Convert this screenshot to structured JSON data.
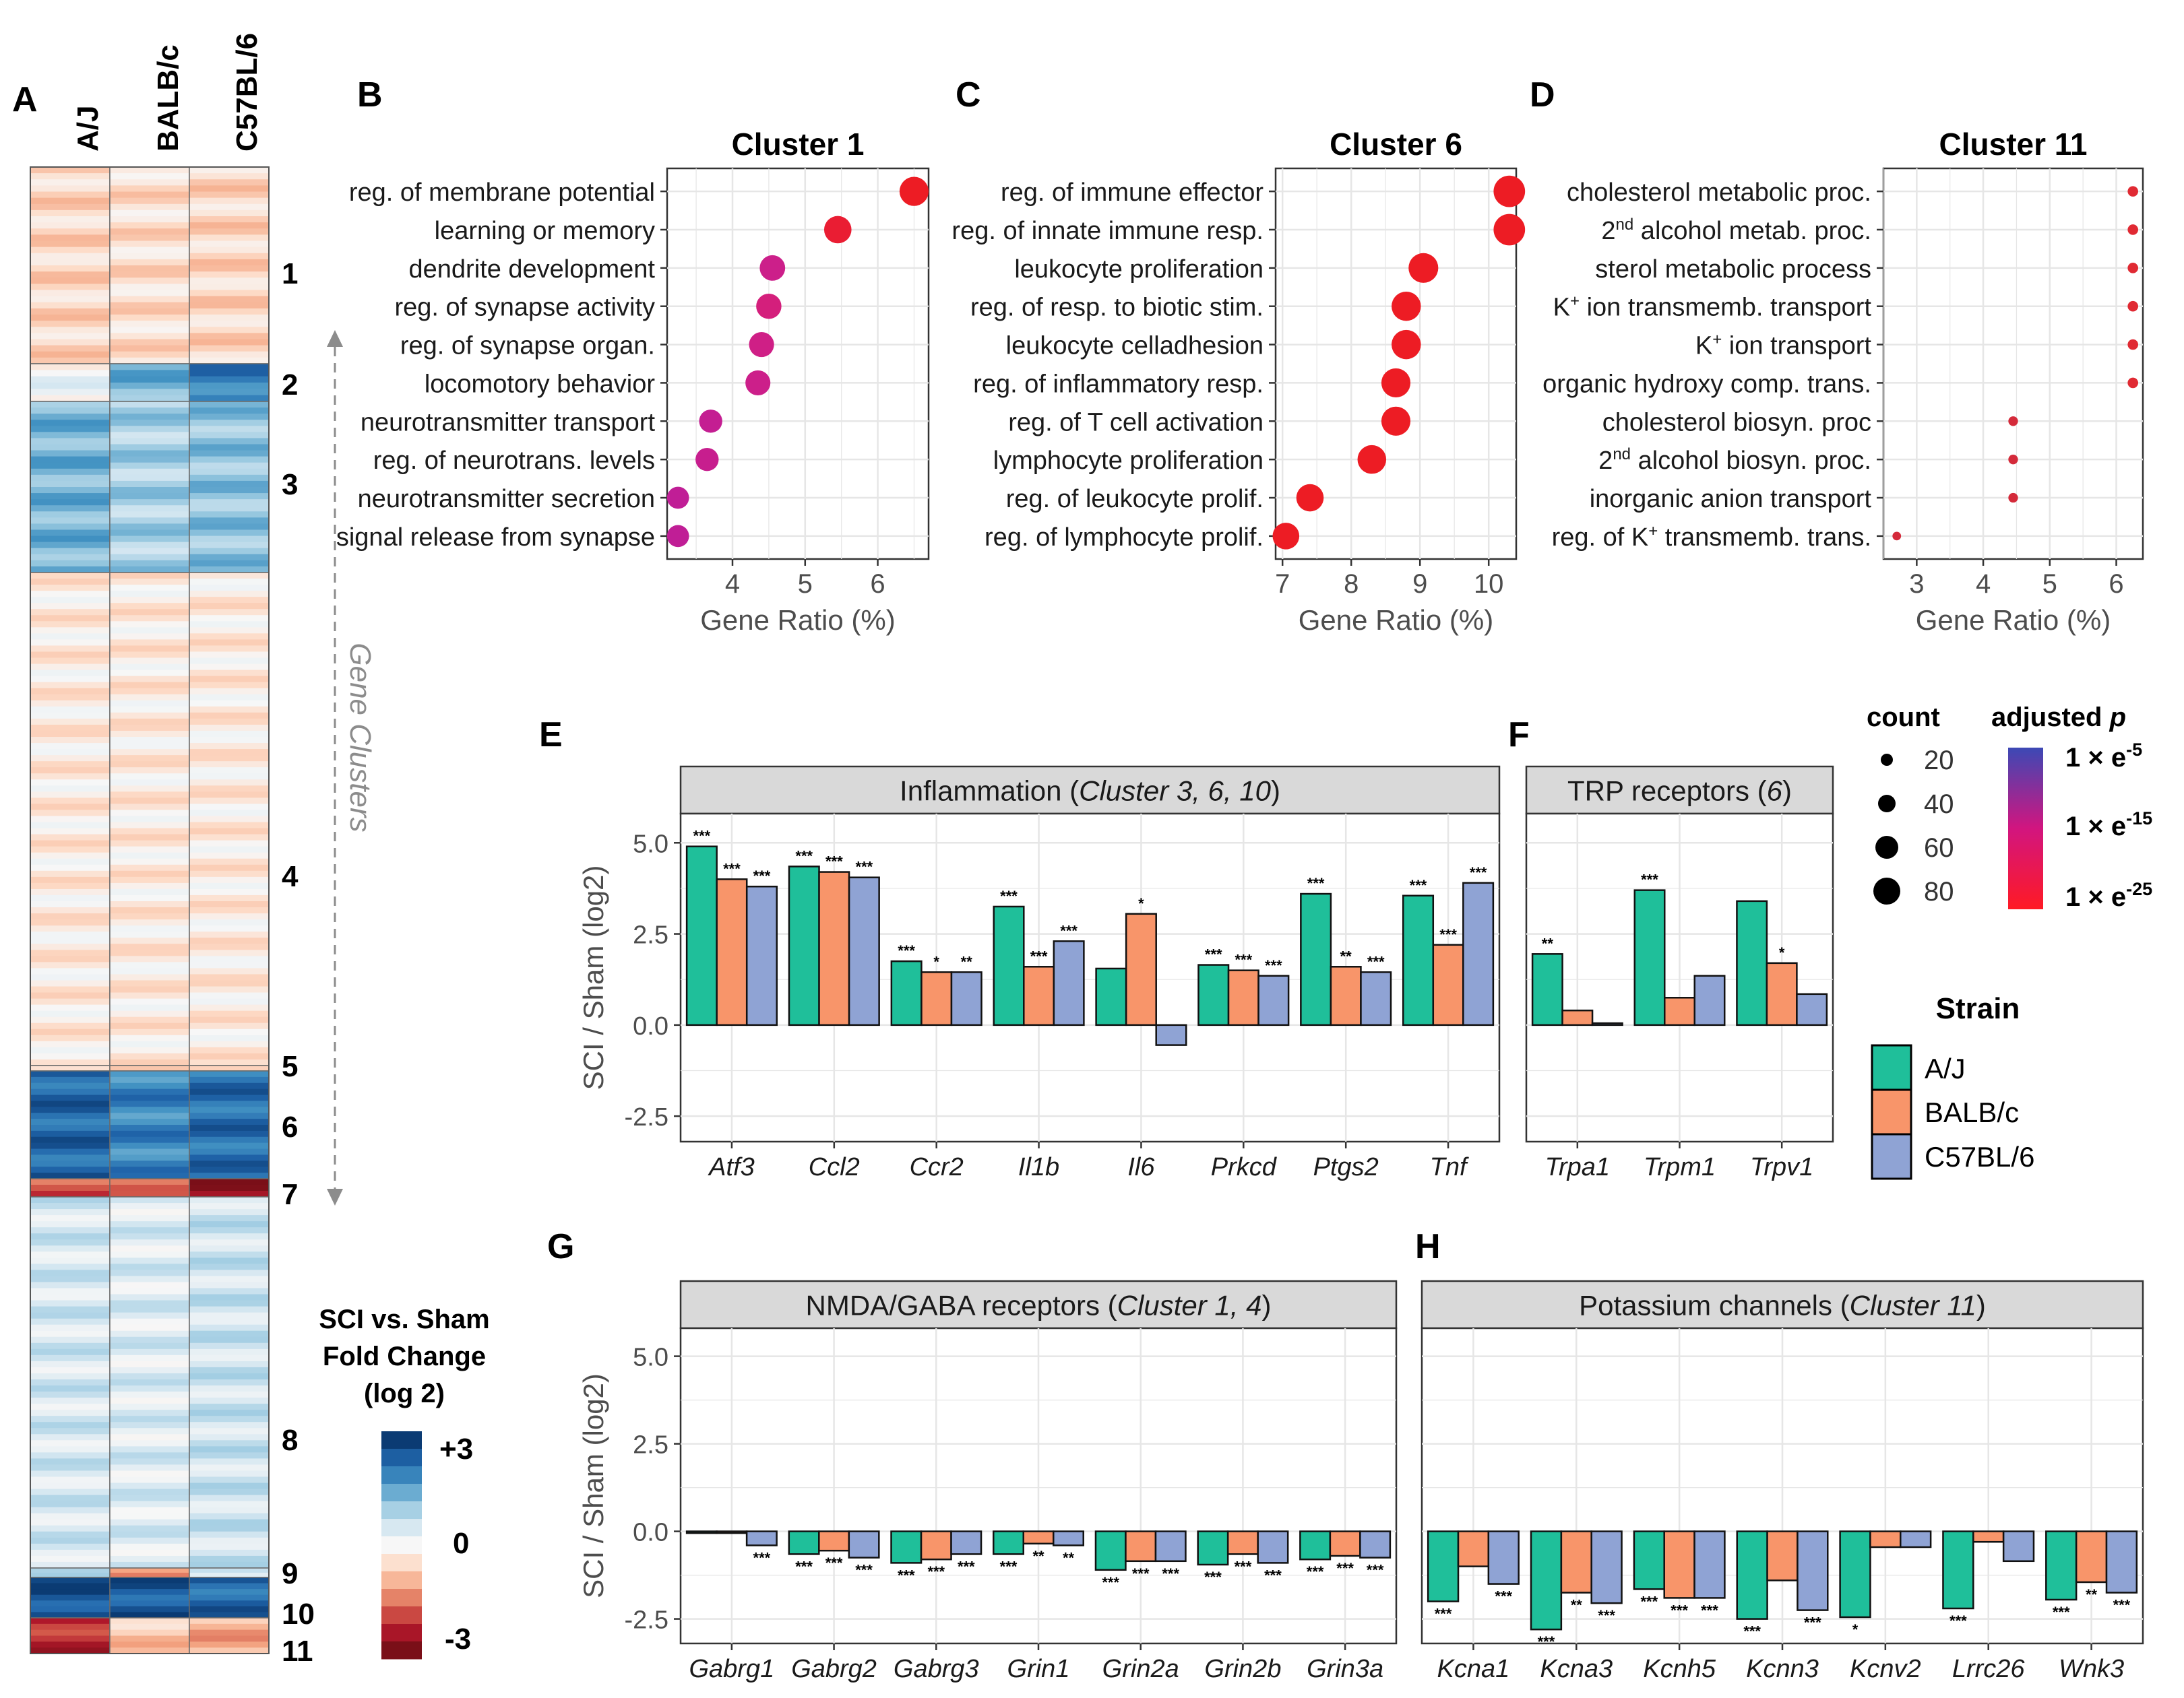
{
  "colors": {
    "aj": "#1fbf9a",
    "balb": "#f8956a",
    "c57": "#8fa3d4",
    "panel_bg": "#ffffff",
    "strip_bg": "#d9d9d9",
    "grid": "#e6e6e6",
    "dot_high": "#ed1c24",
    "dot_low": "#cc1f8a",
    "pos_dark": "#0b3b73",
    "neg_dark": "#7a0f18"
  },
  "chart_data": [
    {
      "panel": "A",
      "type": "heatmap",
      "strains": [
        "A/J",
        "BALB/c",
        "C57BL/6"
      ],
      "clusters": [
        {
          "id": "1",
          "label": "1",
          "aj": -0.6,
          "balb": -0.5,
          "c57": -0.6
        },
        {
          "id": "2",
          "label": "2",
          "aj": 0.1,
          "balb": 1.4,
          "c57": 2.1
        },
        {
          "id": "3",
          "label": "3",
          "aj": 1.4,
          "balb": 1.0,
          "c57": 1.2
        },
        {
          "id": "4",
          "label": "4",
          "aj": -0.3,
          "balb": -0.3,
          "c57": -0.3
        },
        {
          "id": "5",
          "label": "5",
          "aj": -0.4,
          "balb": -0.4,
          "c57": -0.4
        },
        {
          "id": "6",
          "label": "6",
          "aj": 2.4,
          "balb": 2.0,
          "c57": 2.3
        },
        {
          "id": "7",
          "label": "7",
          "aj": -1.9,
          "balb": -1.5,
          "c57": -2.6
        },
        {
          "id": "8",
          "label": "8",
          "aj": 0.5,
          "balb": 0.4,
          "c57": 0.6
        },
        {
          "id": "9",
          "label": "9",
          "aj": 0.6,
          "balb": -1.6,
          "c57": 0.7
        },
        {
          "id": "10",
          "label": "10",
          "aj": 2.7,
          "balb": 2.6,
          "c57": 2.4
        },
        {
          "id": "11",
          "label": "11",
          "aj": -2.3,
          "balb": -0.8,
          "c57": -1.1
        }
      ],
      "axis_label": "Gene Clusters",
      "legend": {
        "title_lines": [
          "SCI vs. Sham",
          "Fold Change",
          "(log 2)"
        ],
        "ticks": [
          "+3",
          "0",
          "-3"
        ],
        "range": [
          -3,
          3
        ]
      }
    },
    {
      "panel": "B",
      "type": "scatter",
      "title": "Cluster 1",
      "xlabel": "Gene Ratio (%)",
      "xlim": [
        3.1,
        6.7
      ],
      "xticks": [
        4,
        5,
        6
      ],
      "terms": [
        {
          "label": "reg. of membrane potential",
          "ratio": 6.5,
          "count": 60,
          "color": "#ed1c24"
        },
        {
          "label": "learning or memory",
          "ratio": 5.45,
          "count": 52,
          "color": "#ea1d33"
        },
        {
          "label": "dendrite development",
          "ratio": 4.55,
          "count": 44,
          "color": "#cc1f8a"
        },
        {
          "label": "reg. of synapse activity",
          "ratio": 4.5,
          "count": 43,
          "color": "#d41f7c"
        },
        {
          "label": "reg. of synapse organ.",
          "ratio": 4.4,
          "count": 42,
          "color": "#cf1f86"
        },
        {
          "label": "locomotory behavior",
          "ratio": 4.35,
          "count": 42,
          "color": "#cc1f8a"
        },
        {
          "label": "neurotransmitter transport",
          "ratio": 3.7,
          "count": 35,
          "color": "#c41e92"
        },
        {
          "label": "reg. of neurotrans. levels",
          "ratio": 3.65,
          "count": 35,
          "color": "#c71e8e"
        },
        {
          "label": "neurotransmitter secretion",
          "ratio": 3.25,
          "count": 31,
          "color": "#c01e96"
        },
        {
          "label": "signal release from synapse",
          "ratio": 3.25,
          "count": 31,
          "color": "#c01e96"
        }
      ]
    },
    {
      "panel": "C",
      "type": "scatter",
      "title": "Cluster 6",
      "xlabel": "Gene Ratio (%)",
      "xlim": [
        6.9,
        10.4
      ],
      "xticks": [
        7,
        8,
        9,
        10
      ],
      "terms": [
        {
          "label": "reg. of immune effector",
          "ratio": 10.3,
          "count": 72,
          "color": "#ed1c24"
        },
        {
          "label": "reg. of innate immune resp.",
          "ratio": 10.3,
          "count": 72,
          "color": "#ed1c24"
        },
        {
          "label": "leukocyte proliferation",
          "ratio": 9.05,
          "count": 63,
          "color": "#ed1c24"
        },
        {
          "label": "reg. of resp. to biotic stim.",
          "ratio": 8.8,
          "count": 61,
          "color": "#ed1c24"
        },
        {
          "label": "leukocyte celladhesion",
          "ratio": 8.8,
          "count": 61,
          "color": "#ed1c24"
        },
        {
          "label": "reg. of inflammatory resp.",
          "ratio": 8.65,
          "count": 60,
          "color": "#ed1c24"
        },
        {
          "label": "reg. of T cell activation",
          "ratio": 8.65,
          "count": 60,
          "color": "#ed1c24"
        },
        {
          "label": "lymphocyte proliferation",
          "ratio": 8.3,
          "count": 58,
          "color": "#ed1c24"
        },
        {
          "label": "reg. of leukocyte prolif.",
          "ratio": 7.4,
          "count": 52,
          "color": "#ed1c24"
        },
        {
          "label": "reg. of lymphocyte prolif.",
          "ratio": 7.05,
          "count": 49,
          "color": "#ed1c24"
        }
      ]
    },
    {
      "panel": "D",
      "type": "scatter",
      "title": "Cluster 11",
      "xlabel": "Gene Ratio (%)",
      "xlim": [
        2.5,
        6.4
      ],
      "xticks": [
        3,
        4,
        5,
        6
      ],
      "terms": [
        {
          "label": "cholesterol metabolic proc.",
          "sup": "",
          "ratio": 6.25,
          "count": 4,
          "color": "#e02a33"
        },
        {
          "label": "alcohol metab. proc.",
          "sup": "2nd",
          "ratio": 6.25,
          "count": 4,
          "color": "#e02a33"
        },
        {
          "label": "sterol metabolic process",
          "sup": "",
          "ratio": 6.25,
          "count": 4,
          "color": "#e02a33"
        },
        {
          "label": " ion transmemb. transport",
          "sup": "K+",
          "ratio": 6.25,
          "count": 4,
          "color": "#e02a33"
        },
        {
          "label": " ion transport",
          "sup": "K+",
          "ratio": 6.25,
          "count": 4,
          "color": "#e02a33"
        },
        {
          "label": "organic hydroxy comp. trans.",
          "sup": "",
          "ratio": 6.25,
          "count": 4,
          "color": "#e02a33"
        },
        {
          "label": "cholesterol biosyn. proc",
          "sup": "",
          "ratio": 4.45,
          "count": 3,
          "color": "#d42a3a"
        },
        {
          "label": "alcohol biosyn. proc.",
          "sup": "2nd",
          "ratio": 4.45,
          "count": 3,
          "color": "#d42a3a"
        },
        {
          "label": "inorganic anion transport",
          "sup": "",
          "ratio": 4.45,
          "count": 3,
          "color": "#d42a3a"
        },
        {
          "label": " transmemb. trans.",
          "sup": "K+",
          "pre": "reg. of ",
          "ratio": 2.7,
          "count": 2,
          "color": "#d42a3a"
        }
      ]
    },
    {
      "panel": "E",
      "type": "bar",
      "strip": "Inflammation",
      "strip_italic": "Cluster 3, 6, 10",
      "ylabel": "SCI / Sham (log2)",
      "ylim": [
        -3.2,
        5.8
      ],
      "yticks": [
        "5.0",
        "2.5",
        "0.0",
        "-2.5"
      ],
      "categories": [
        "Atf3",
        "Ccl2",
        "Ccr2",
        "Il1b",
        "Il6",
        "Prkcd",
        "Ptgs2",
        "Tnf"
      ],
      "series": [
        {
          "name": "A/J",
          "values": [
            4.9,
            4.35,
            1.75,
            3.25,
            1.55,
            1.65,
            3.6,
            3.55
          ],
          "sig": [
            "***",
            "***",
            "***",
            "***",
            "",
            "***",
            "***",
            "***"
          ]
        },
        {
          "name": "BALB/c",
          "values": [
            4.0,
            4.2,
            1.45,
            1.6,
            3.05,
            1.5,
            1.6,
            2.2
          ],
          "sig": [
            "***",
            "***",
            "*",
            "***",
            "*",
            "***",
            "**",
            "***"
          ]
        },
        {
          "name": "C57BL/6",
          "values": [
            3.8,
            4.05,
            1.45,
            2.3,
            -0.55,
            1.35,
            1.45,
            3.9
          ],
          "sig": [
            "***",
            "***",
            "**",
            "***",
            "",
            "***",
            "***",
            "***"
          ]
        }
      ]
    },
    {
      "panel": "F",
      "type": "bar",
      "strip": "TRP receptors",
      "strip_italic": "6",
      "ylim": [
        -3.2,
        5.8
      ],
      "categories": [
        "Trpa1",
        "Trpm1",
        "Trpv1"
      ],
      "series": [
        {
          "name": "A/J",
          "values": [
            1.95,
            3.7,
            3.4
          ],
          "sig": [
            "**",
            "***",
            ""
          ]
        },
        {
          "name": "BALB/c",
          "values": [
            0.4,
            0.75,
            1.7
          ],
          "sig": [
            "",
            "",
            "*"
          ]
        },
        {
          "name": "C57BL/6",
          "values": [
            0.05,
            1.35,
            0.85
          ],
          "sig": [
            "",
            "",
            ""
          ]
        }
      ]
    },
    {
      "panel": "G",
      "type": "bar",
      "strip": "NMDA/GABA receptors",
      "strip_italic": "Cluster 1, 4",
      "ylabel": "SCI / Sham (log2)",
      "ylim": [
        -3.2,
        5.8
      ],
      "yticks": [
        "5.0",
        "2.5",
        "0.0",
        "-2.5"
      ],
      "categories": [
        "Gabrg1",
        "Gabrg2",
        "Gabrg3",
        "Grin1",
        "Grin2a",
        "Grin2b",
        "Grin3a"
      ],
      "series": [
        {
          "name": "A/J",
          "values": [
            -0.05,
            -0.65,
            -0.9,
            -0.65,
            -1.1,
            -0.95,
            -0.8
          ],
          "sig": [
            "",
            "***",
            "***",
            "***",
            "***",
            "***",
            "***"
          ]
        },
        {
          "name": "BALB/c",
          "values": [
            -0.05,
            -0.55,
            -0.8,
            -0.35,
            -0.85,
            -0.65,
            -0.7
          ],
          "sig": [
            "",
            "***",
            "***",
            "**",
            "***",
            "***",
            "***"
          ]
        },
        {
          "name": "C57BL/6",
          "values": [
            -0.4,
            -0.75,
            -0.65,
            -0.4,
            -0.85,
            -0.9,
            -0.75
          ],
          "sig": [
            "***",
            "***",
            "***",
            "**",
            "***",
            "***",
            "***"
          ]
        }
      ]
    },
    {
      "panel": "H",
      "type": "bar",
      "strip": "Potassium channels",
      "strip_italic": "Cluster 11",
      "ylim": [
        -3.2,
        5.8
      ],
      "categories": [
        "Kcna1",
        "Kcna3",
        "Kcnh5",
        "Kcnn3",
        "Kcnv2",
        "Lrrc26",
        "Wnk3"
      ],
      "series": [
        {
          "name": "A/J",
          "values": [
            -2.0,
            -2.8,
            -1.65,
            -2.5,
            -2.45,
            -2.2,
            -1.95
          ],
          "sig": [
            "***",
            "***",
            "***",
            "***",
            "*",
            "***",
            "***"
          ]
        },
        {
          "name": "BALB/c",
          "values": [
            -1.0,
            -1.75,
            -1.9,
            -1.4,
            -0.45,
            -0.3,
            -1.45
          ],
          "sig": [
            "",
            "**",
            "***",
            "",
            "",
            "",
            "**"
          ]
        },
        {
          "name": "C57BL/6",
          "values": [
            -1.5,
            -2.05,
            -1.9,
            -2.25,
            -0.45,
            -0.85,
            -1.75
          ],
          "sig": [
            "***",
            "***",
            "***",
            "***",
            "",
            "",
            "***"
          ]
        }
      ]
    }
  ],
  "legends": {
    "count": {
      "title": "count",
      "values": [
        "20",
        "40",
        "60",
        "80"
      ]
    },
    "padj": {
      "title": "adjusted ",
      "title_italic": "p",
      "labels": [
        "1 × e",
        "1 × e",
        "1 × e"
      ],
      "exps": [
        "-5",
        "-15",
        "-25"
      ]
    },
    "strain": {
      "title": "Strain",
      "items": [
        "A/J",
        "BALB/c",
        "C57BL/6"
      ]
    }
  },
  "panel_letters": [
    "A",
    "B",
    "C",
    "D",
    "E",
    "F",
    "G",
    "H"
  ]
}
